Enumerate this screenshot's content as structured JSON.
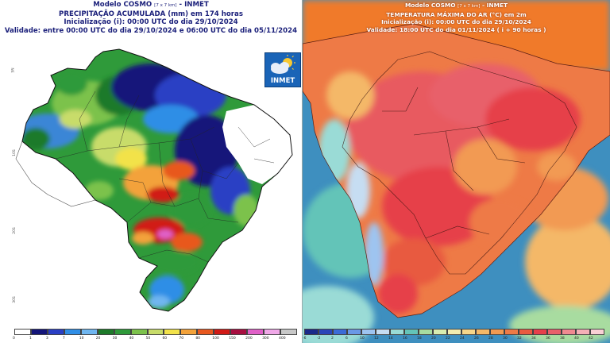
{
  "left_panel": {
    "line1": "Modelo COSMO",
    "line1_small": "[7 x 7 km]",
    "line1_end": "- INMET",
    "line2": "PRECIPITAÇÃO ACUMULADA (mm) em 174 horas",
    "line3": "Inicialização (i): 00:00 UTC do dia 29/10/2024",
    "line4": "Validade: entre 00:00 UTC do dia 29/10/2024 e 06:00 UTC do dia 05/11/2024",
    "logo_text": "INMET",
    "logo_icon": "sun-cloud-icon",
    "legend": {
      "labels": [
        "0",
        "1",
        "3",
        "7",
        "10",
        "20",
        "30",
        "40",
        "50",
        "60",
        "70",
        "80",
        "100",
        "150",
        "200",
        "300",
        "400"
      ],
      "colors": [
        "#ffffff",
        "#14157a",
        "#2a3fc4",
        "#2f8ee6",
        "#6fb6f0",
        "#1d7a2a",
        "#2f9a3a",
        "#7cc24c",
        "#c8dc6a",
        "#f2e24a",
        "#f3a23a",
        "#e8581f",
        "#d11a16",
        "#a80e40",
        "#e060c8",
        "#f0a8e8",
        "#c8c8c8"
      ]
    }
  },
  "right_panel": {
    "line1": "Modelo COSMO",
    "line1_small": "[7 x 7 km]",
    "line1_end": "- INMET",
    "line2": "TEMPERATURA MÁXIMA DO AR (°C) em 2m",
    "line3": "Inicialização (i): 00:00 UTC do dia 29/10/2024",
    "line4": "Validade: 18:00 UTC do dia 01/11/2024 ( i + 90 horas )",
    "legend": {
      "labels": [
        "-6",
        "-2",
        "2",
        "6",
        "10",
        "12",
        "14",
        "16",
        "18",
        "20",
        "22",
        "24",
        "26",
        "28",
        "30",
        "32",
        "34",
        "36",
        "38",
        "40",
        "42"
      ],
      "colors": [
        "#1a2a8a",
        "#2a46b8",
        "#3b6bd6",
        "#6a98e6",
        "#9ec4f0",
        "#c6ddf2",
        "#9adbd6",
        "#64c4b8",
        "#a8dca0",
        "#d8ecb0",
        "#f2ecb0",
        "#f6d68a",
        "#f4b868",
        "#f29a52",
        "#ee7a46",
        "#e85a40",
        "#e6404a",
        "#e8606a",
        "#f08a90",
        "#f4b0b6",
        "#f8d0d4"
      ]
    }
  },
  "colors": {
    "header_left": "#1a1f7a",
    "hot": "#e8455a",
    "warm": "#f07a2c",
    "ocean": "#3e8fbf"
  }
}
